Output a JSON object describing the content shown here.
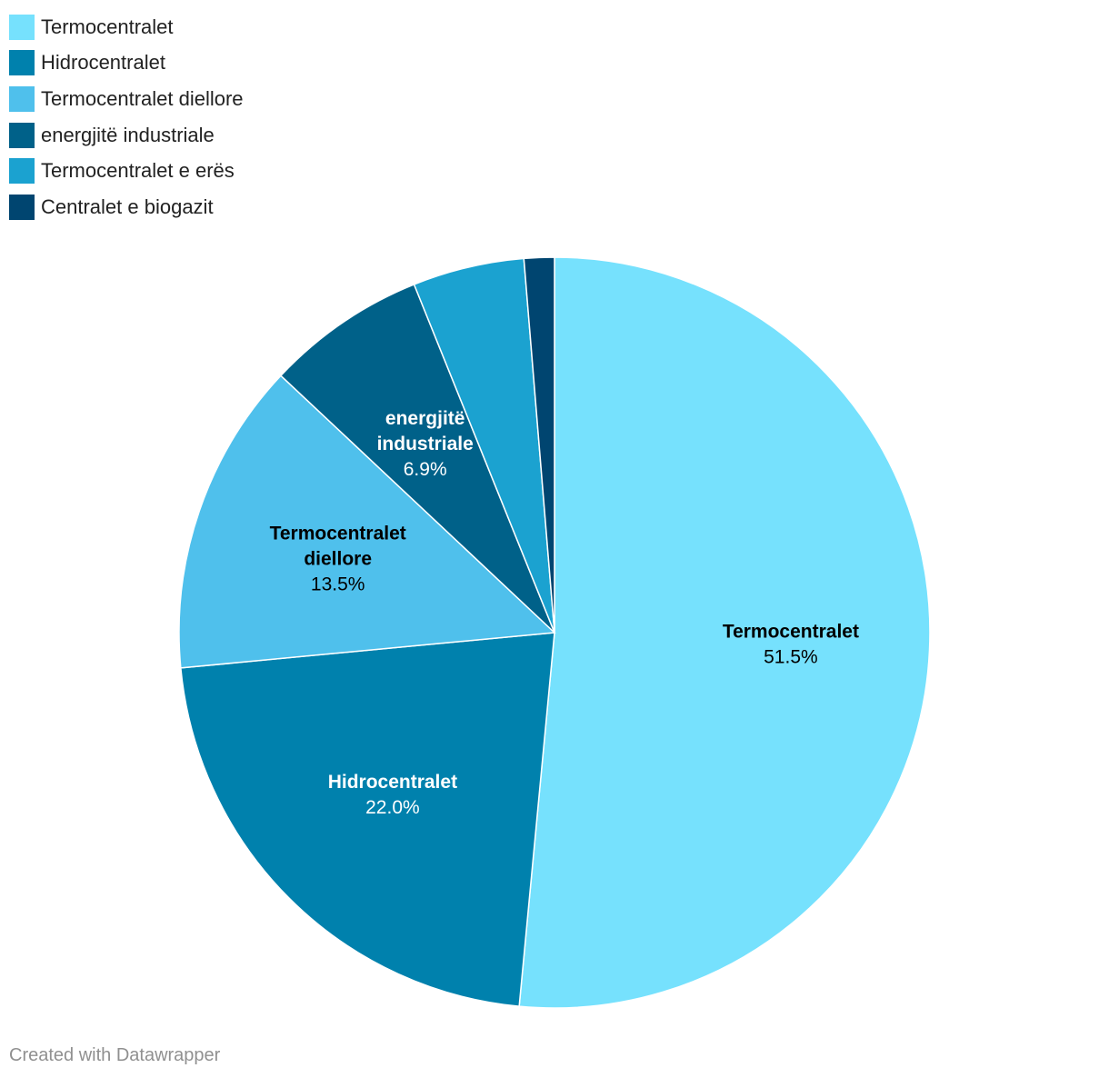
{
  "chart_data": {
    "type": "pie",
    "title": "",
    "legend_position": "top-left",
    "slices": [
      {
        "name": "Termocentralet",
        "value": 51.5,
        "value_label": "51.5%",
        "color": "#76e1fd",
        "label_lines": [
          "Termocentralet"
        ],
        "label_color": "#000000"
      },
      {
        "name": "Hidrocentralet",
        "value": 22.0,
        "value_label": "22.0%",
        "color": "#0081ad",
        "label_lines": [
          "Hidrocentralet"
        ],
        "label_color": "#ffffff"
      },
      {
        "name": "Termocentralet diellore",
        "value": 13.5,
        "value_label": "13.5%",
        "color": "#4fc0ec",
        "label_lines": [
          "Termocentralet",
          "diellore"
        ],
        "label_color": "#000000"
      },
      {
        "name": "energjitë industriale",
        "value": 6.9,
        "value_label": "6.9%",
        "color": "#006189",
        "label_lines": [
          "energjitë",
          "industriale"
        ],
        "label_color": "#ffffff"
      },
      {
        "name": "Termocentralet e erës",
        "value": 4.8,
        "value_label": "",
        "color": "#1ba2d0",
        "label_lines": [],
        "label_color": "#ffffff"
      },
      {
        "name": "Centralet e biogazit",
        "value": 1.3,
        "value_label": "",
        "color": "#004570",
        "label_lines": [],
        "label_color": "#ffffff"
      }
    ]
  },
  "footer": {
    "credit": "Created with Datawrapper"
  }
}
